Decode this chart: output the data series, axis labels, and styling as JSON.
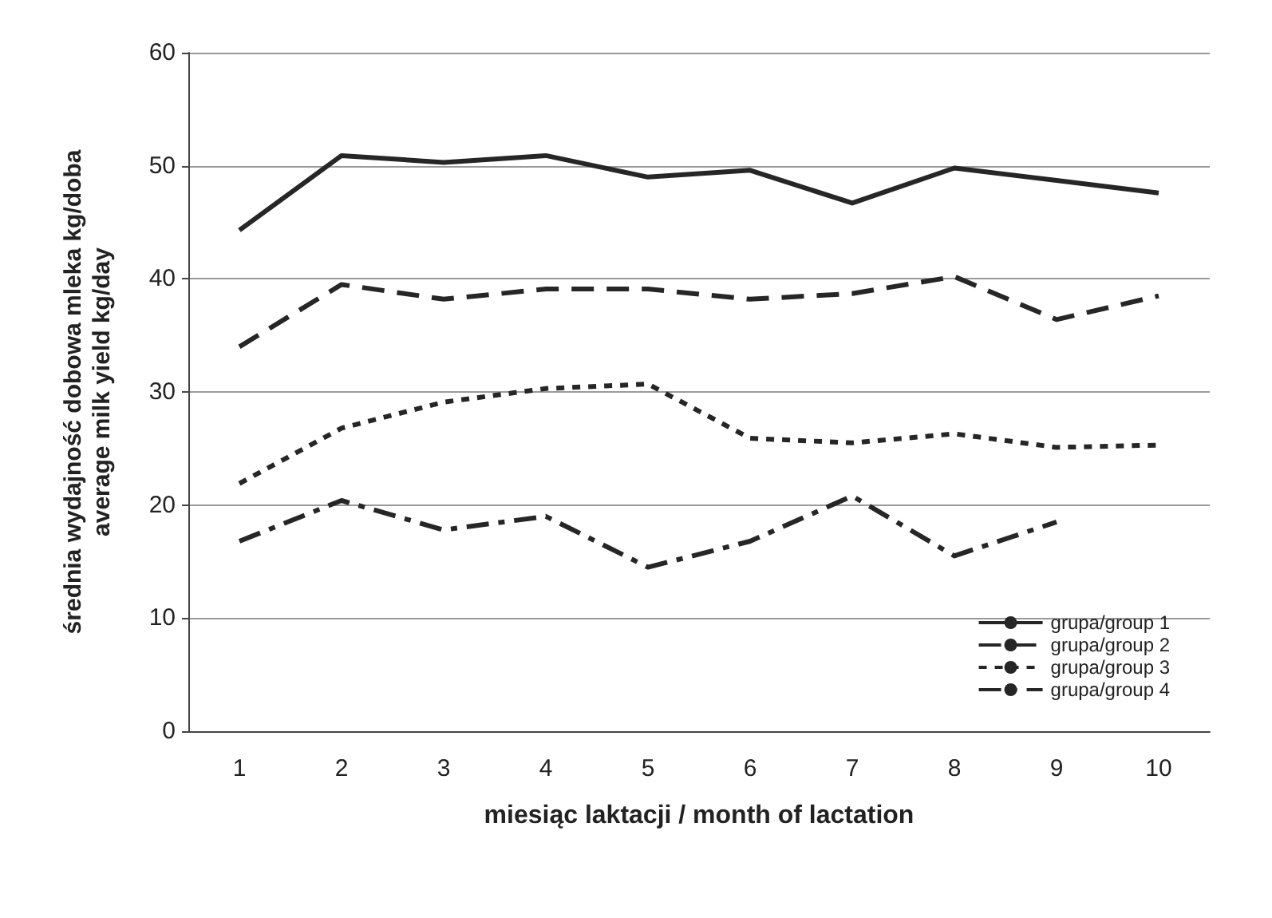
{
  "chart_data": {
    "type": "line",
    "xlabel": "miesiąc laktacji / month of lactation",
    "ylabel": "średnia wydajność dobowa mleka kg/doba\naverage milk yield kg/day",
    "categories": [
      "1",
      "2",
      "3",
      "4",
      "5",
      "6",
      "7",
      "8",
      "9",
      "10"
    ],
    "series": [
      {
        "name": "grupa/group 1",
        "color": "#262626",
        "line_style": "solid",
        "values": [
          44.3,
          50.9,
          50.3,
          50.9,
          49.0,
          49.6,
          46.7,
          49.8,
          48.7,
          47.6
        ]
      },
      {
        "name": "grupa/group 2",
        "color": "#262626",
        "line_style": "dashed",
        "values": [
          34.0,
          39.5,
          38.2,
          39.1,
          39.1,
          38.2,
          38.7,
          40.2,
          36.4,
          38.5
        ]
      },
      {
        "name": "grupa/group 3",
        "color": "#262626",
        "line_style": "dotted",
        "values": [
          21.9,
          26.8,
          29.1,
          30.3,
          30.7,
          25.9,
          25.5,
          26.3,
          25.1,
          25.3
        ]
      },
      {
        "name": "grupa/group 4",
        "color": "#262626",
        "line_style": "dashdot",
        "values": [
          16.8,
          20.4,
          17.8,
          19.0,
          14.5,
          16.8,
          20.8,
          15.5,
          18.5,
          null
        ]
      }
    ],
    "ylim": [
      0,
      60
    ],
    "yticks": [
      0,
      10,
      20,
      30,
      40,
      50,
      60
    ],
    "grid": "y",
    "legend": "bottom right",
    "marker": "none"
  }
}
